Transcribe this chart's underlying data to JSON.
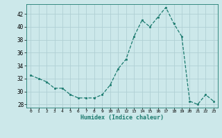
{
  "x": [
    0,
    1,
    2,
    3,
    4,
    5,
    6,
    7,
    8,
    9,
    10,
    11,
    12,
    13,
    14,
    15,
    16,
    17,
    18,
    19,
    20,
    21,
    22,
    23
  ],
  "y": [
    32.5,
    32.0,
    31.5,
    30.5,
    30.5,
    29.5,
    29.0,
    29.0,
    29.0,
    29.5,
    31.0,
    33.5,
    35.0,
    38.5,
    41.0,
    40.0,
    41.5,
    43.0,
    40.5,
    38.5,
    28.5,
    28.0,
    29.5,
    28.5
  ],
  "xlim": [
    -0.5,
    23.5
  ],
  "ylim": [
    27.5,
    43.5
  ],
  "yticks": [
    28,
    30,
    32,
    34,
    36,
    38,
    40,
    42
  ],
  "xticks": [
    0,
    1,
    2,
    3,
    4,
    5,
    6,
    7,
    8,
    9,
    10,
    11,
    12,
    13,
    14,
    15,
    16,
    17,
    18,
    19,
    20,
    21,
    22,
    23
  ],
  "xlabel": "Humidex (Indice chaleur)",
  "line_color": "#1a7a6e",
  "marker_color": "#1a7a6e",
  "bg_color": "#cce8ea",
  "grid_color": "#b0d0d4",
  "title": ""
}
